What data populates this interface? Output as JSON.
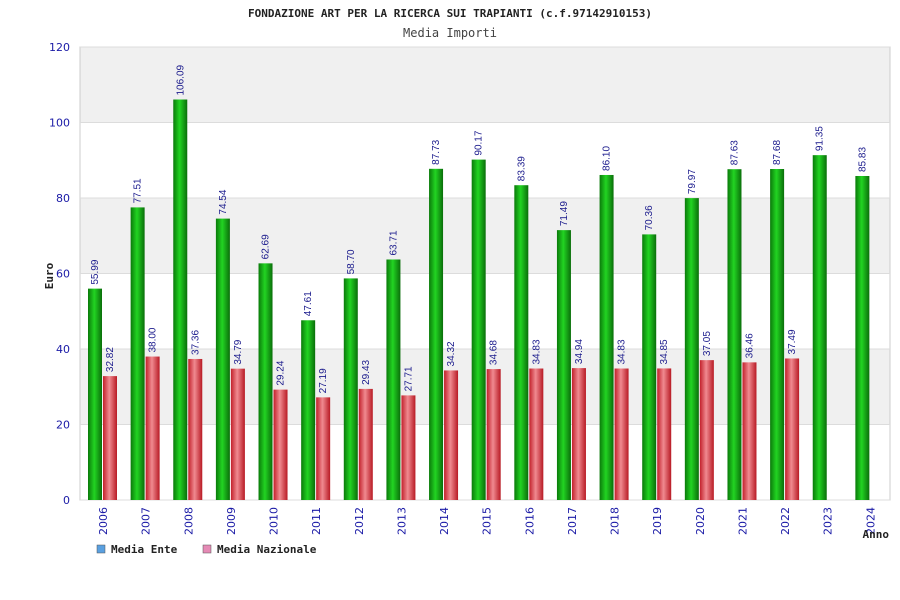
{
  "colors": {
    "ente": "#17a317",
    "nazionale": "#e0404a",
    "legend_ente": "#5aa0e0",
    "legend_nazionale": "#e58ab5",
    "band": "#f0f0f0",
    "grid": "#dcdcdc",
    "tick_text": "#1a1aa6"
  },
  "chart_data": {
    "type": "bar",
    "title": "FONDAZIONE ART PER LA RICERCA SUI TRAPIANTI (c.f.97142910153)",
    "subtitle": "Media Importi",
    "xlabel": "Anno",
    "ylabel": "Euro",
    "ylim": [
      0,
      120
    ],
    "yticks": [
      0,
      20,
      40,
      60,
      80,
      100,
      120
    ],
    "grid": true,
    "legend_position": "bottom-left",
    "categories": [
      "2006",
      "2007",
      "2008",
      "2009",
      "2010",
      "2011",
      "2012",
      "2013",
      "2014",
      "2015",
      "2016",
      "2017",
      "2018",
      "2019",
      "2020",
      "2021",
      "2022",
      "2023",
      "2024"
    ],
    "series": [
      {
        "name": "Media Ente",
        "values": [
          55.99,
          77.51,
          106.09,
          74.54,
          62.69,
          47.61,
          58.7,
          63.71,
          87.73,
          90.17,
          83.39,
          71.49,
          86.1,
          70.36,
          79.97,
          87.63,
          87.68,
          91.35,
          85.83
        ],
        "labels": [
          "55.99",
          "77.51",
          "106.09",
          "74.54",
          "62.69",
          "47.61",
          "58.70",
          "63.71",
          "87.73",
          "90.17",
          "83.39",
          "71.49",
          "86.10",
          "70.36",
          "79.97",
          "87.63",
          "87.68",
          "91.35",
          "85.83"
        ]
      },
      {
        "name": "Media Nazionale",
        "values": [
          32.82,
          38.0,
          37.36,
          34.79,
          29.24,
          27.19,
          29.43,
          27.71,
          34.32,
          34.68,
          34.83,
          34.94,
          34.83,
          34.85,
          37.05,
          36.46,
          37.49,
          null,
          null
        ],
        "labels": [
          "32.82",
          "38.00",
          "37.36",
          "34.79",
          "29.24",
          "27.19",
          "29.43",
          "27.71",
          "34.32",
          "34.68",
          "34.83",
          "34.94",
          "34.83",
          "34.85",
          "37.05",
          "36.46",
          "37.49",
          "",
          ""
        ]
      }
    ]
  }
}
